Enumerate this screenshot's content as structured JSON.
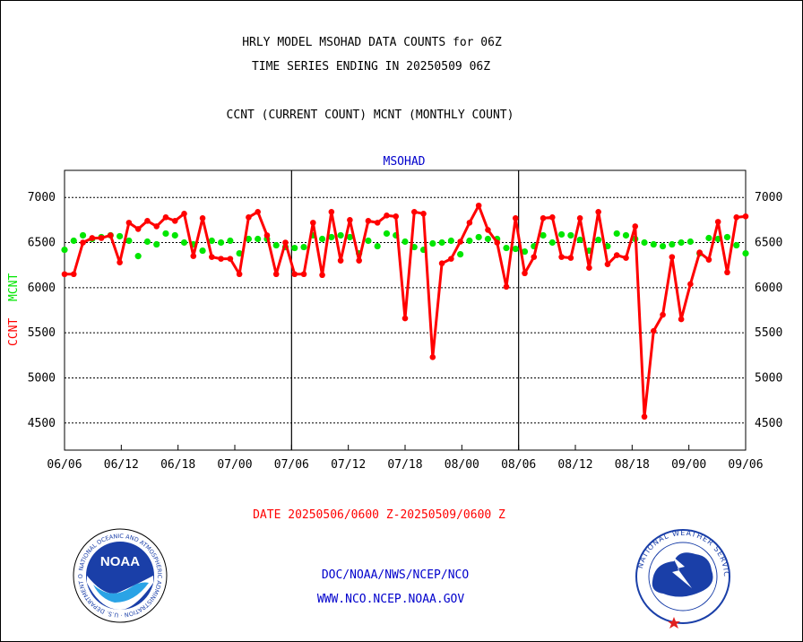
{
  "header": {
    "title_line1": "HRLY MODEL MSOHAD DATA COUNTS for 06Z",
    "title_line2": "TIME SERIES ENDING IN 20250509 06Z",
    "subtitle": "CCNT (CURRENT COUNT) MCNT (MONTHLY COUNT)",
    "panel_label": "MSOHAD"
  },
  "axes": {
    "ylabel_ccnt": "CCNT",
    "ylabel_mcnt": "MCNT",
    "y_ticks": [
      "7000",
      "6500",
      "6000",
      "5500",
      "5000",
      "4500"
    ],
    "x_ticks": [
      "06/06",
      "06/12",
      "06/18",
      "07/00",
      "07/06",
      "07/12",
      "07/18",
      "08/00",
      "08/06",
      "08/12",
      "08/18",
      "09/00",
      "09/06"
    ]
  },
  "footer": {
    "date_range": "DATE 20250506/0600 Z-20250509/0600 Z",
    "org_path": "DOC/NOAA/NWS/NCEP/NCO",
    "website": "WWW.NCO.NCEP.NOAA.GOV"
  },
  "logos": {
    "left": {
      "name": "noaa-logo",
      "text": "NOAA",
      "ring_text": "NATIONAL OCEANIC AND ATMOSPHERIC ADMINISTRATION · U.S. DEPARTMENT OF COMMERCE"
    },
    "right": {
      "name": "nws-logo",
      "ring_text": "NATIONAL WEATHER SERVICE"
    }
  },
  "colors": {
    "ccnt": "#ff0000",
    "mcnt": "#00e600",
    "panel_label": "#0000cc",
    "footer_link": "#0000cc",
    "date_text": "#ff0000"
  },
  "chart_data": {
    "type": "line",
    "x_start": "06/06",
    "x_end": "09/06",
    "x_step_hours": 1,
    "ylim": [
      4200,
      7300
    ],
    "y_gridlines": [
      4500,
      5000,
      5500,
      6000,
      6500,
      7000
    ],
    "grid": true,
    "series": [
      {
        "name": "CCNT",
        "color": "#ff0000",
        "values": [
          6150,
          6150,
          6500,
          6550,
          6550,
          6580,
          6280,
          6720,
          6650,
          6740,
          6680,
          6780,
          6740,
          6820,
          6350,
          6770,
          6340,
          6320,
          6320,
          6150,
          6780,
          6840,
          6580,
          6150,
          6500,
          6150,
          6150,
          6720,
          6140,
          6840,
          6300,
          6750,
          6300,
          6740,
          6720,
          6800,
          6790,
          5660,
          6840,
          6820,
          5230,
          6270,
          6320,
          6510,
          6720,
          6910,
          6640,
          6500,
          6010,
          6770,
          6160,
          6340,
          6770,
          6780,
          6340,
          6330,
          6770,
          6220,
          6840,
          6260,
          6360,
          6330,
          6680,
          4570,
          5520,
          5700,
          6340,
          5650,
          6040,
          6390,
          6310,
          6730,
          6170,
          6780,
          6790
        ]
      },
      {
        "name": "MCNT",
        "color": "#00e600",
        "values": [
          6420,
          6520,
          6580,
          6540,
          6560,
          6580,
          6570,
          6520,
          6350,
          6510,
          6480,
          6600,
          6580,
          6500,
          6480,
          6410,
          6520,
          6500,
          6520,
          6380,
          6540,
          6540,
          6540,
          6470,
          6450,
          6440,
          6450,
          6580,
          6540,
          6560,
          6580,
          6560,
          6380,
          6520,
          6460,
          6600,
          6580,
          6510,
          6450,
          6420,
          6490,
          6500,
          6520,
          6370,
          6520,
          6560,
          6540,
          6540,
          6440,
          6430,
          6400,
          6460,
          6580,
          6500,
          6590,
          6580,
          6530,
          6410,
          6530,
          6460,
          6600,
          6580,
          6540,
          6500,
          6480,
          6460,
          6480,
          6500,
          6510,
          6380,
          6550,
          6540,
          6560,
          6470,
          6380
        ]
      }
    ]
  }
}
